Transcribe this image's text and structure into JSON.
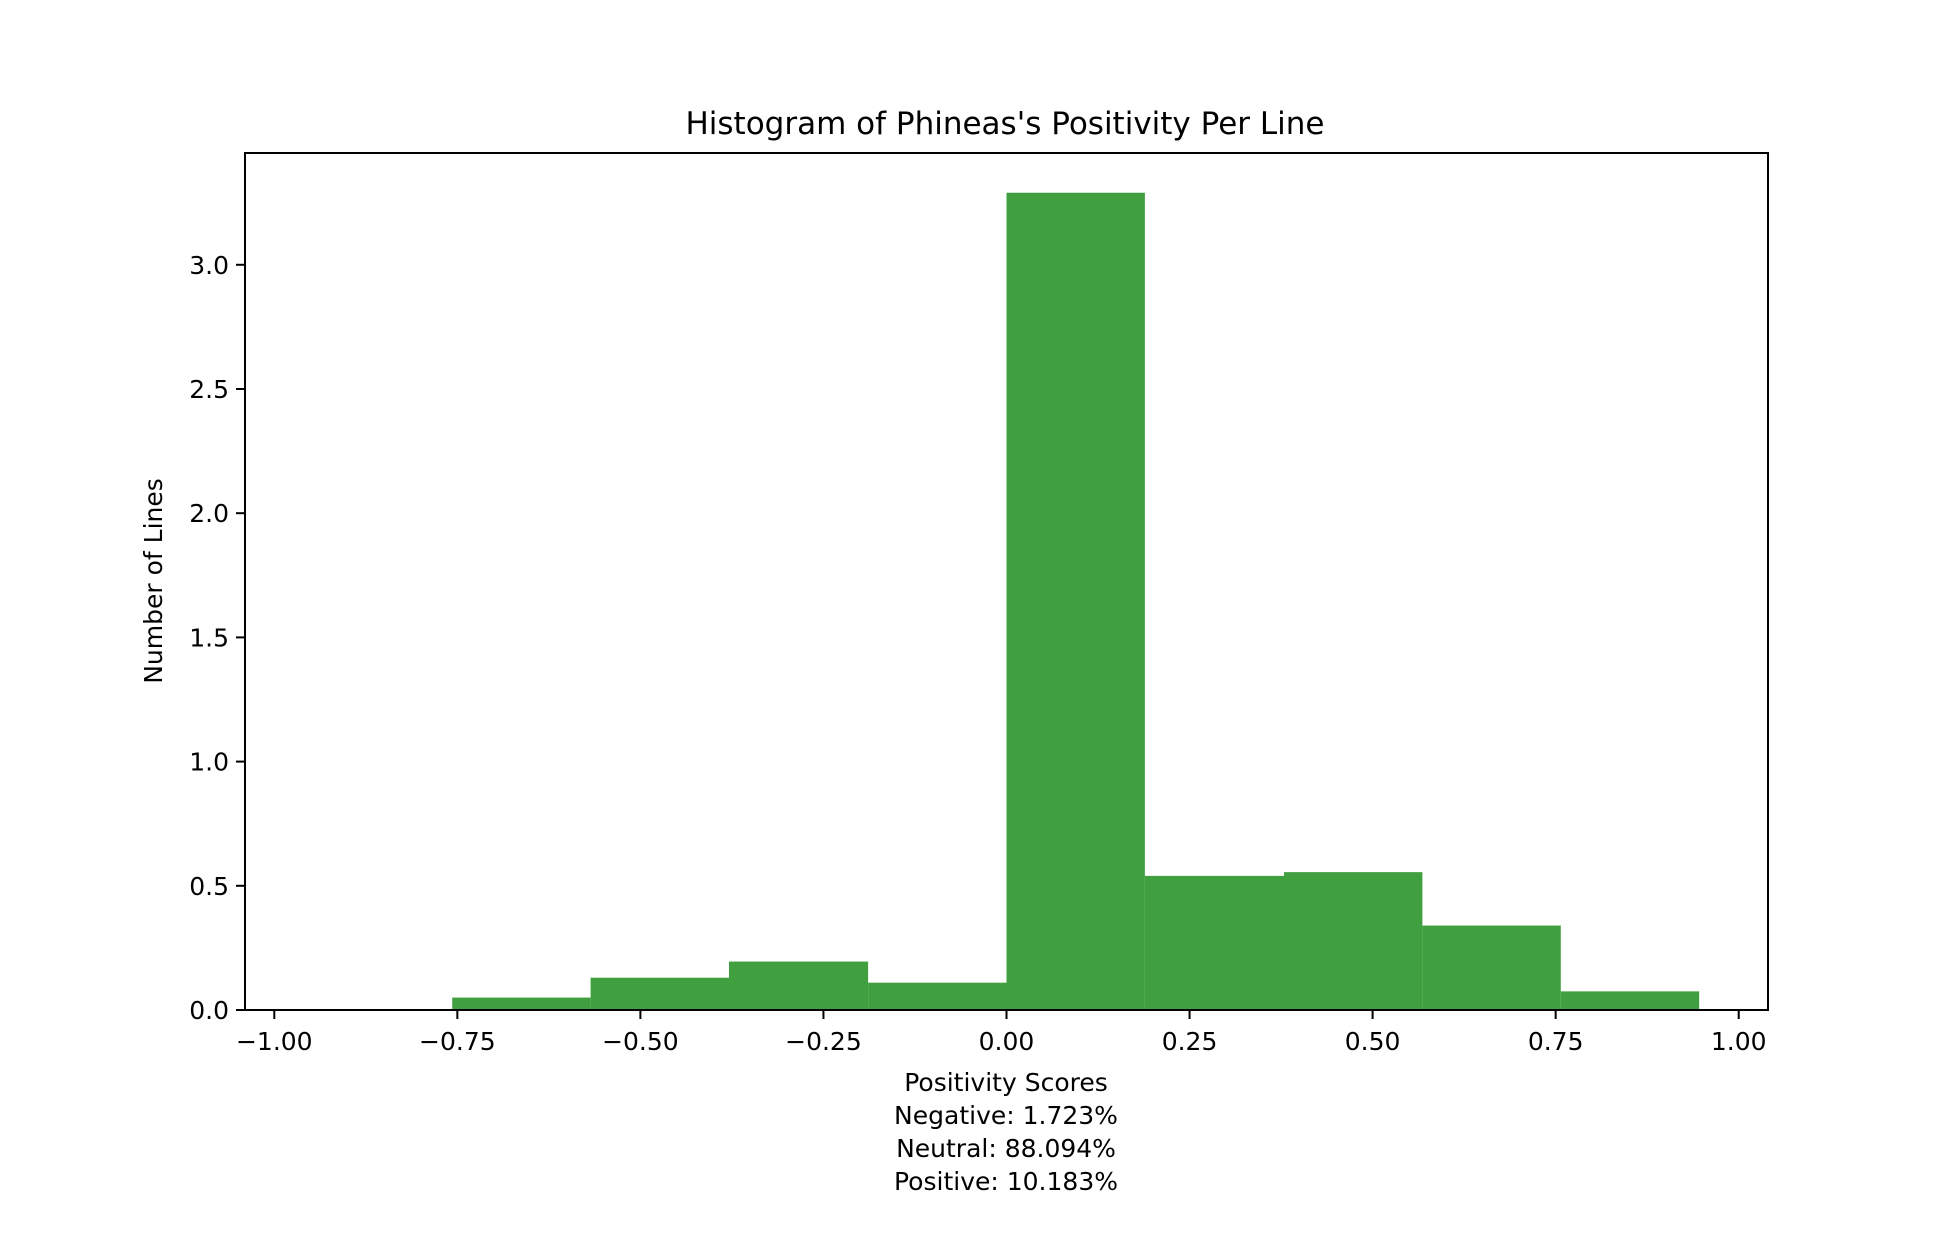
{
  "chart_data": {
    "type": "bar",
    "title": "Histogram of Phineas's Positivity Per Line",
    "xlabel_lines": [
      "Positivity Scores",
      "Negative: 1.723%",
      "Neutral: 88.094%",
      "Positive: 10.183%"
    ],
    "ylabel": "Number of Lines",
    "color": "#40a040",
    "xlim": [
      -1.04,
      1.04
    ],
    "ylim": [
      0,
      3.45
    ],
    "xticks": [
      -1.0,
      -0.75,
      -0.5,
      -0.25,
      0.0,
      0.25,
      0.5,
      0.75,
      1.0
    ],
    "xtick_labels": [
      "−1.00",
      "−0.75",
      "−0.50",
      "−0.25",
      "0.00",
      "0.25",
      "0.50",
      "0.75",
      "1.00"
    ],
    "yticks": [
      0.0,
      0.5,
      1.0,
      1.5,
      2.0,
      2.5,
      3.0
    ],
    "ytick_labels": [
      "0.0",
      "0.5",
      "1.0",
      "1.5",
      "2.0",
      "2.5",
      "3.0"
    ],
    "bins": [
      {
        "x0": -0.757,
        "x1": -0.568,
        "value": 0.05
      },
      {
        "x0": -0.568,
        "x1": -0.379,
        "value": 0.13
      },
      {
        "x0": -0.379,
        "x1": -0.189,
        "value": 0.195
      },
      {
        "x0": -0.189,
        "x1": 0.0,
        "value": 0.11
      },
      {
        "x0": 0.0,
        "x1": 0.189,
        "value": 3.29
      },
      {
        "x0": 0.189,
        "x1": 0.379,
        "value": 0.54
      },
      {
        "x0": 0.379,
        "x1": 0.568,
        "value": 0.555
      },
      {
        "x0": 0.568,
        "x1": 0.757,
        "value": 0.34
      },
      {
        "x0": 0.757,
        "x1": 0.946,
        "value": 0.075
      }
    ],
    "grid": false,
    "legend": "none"
  }
}
